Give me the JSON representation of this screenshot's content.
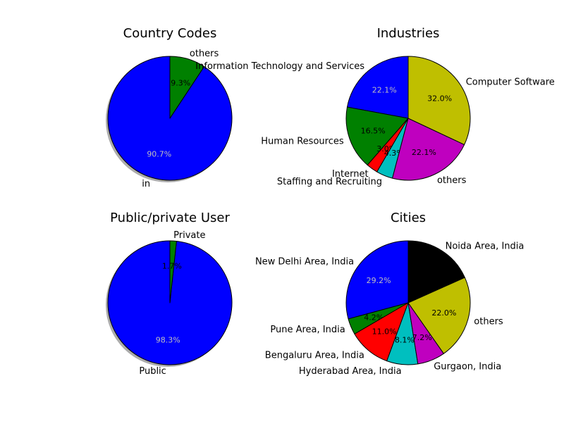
{
  "chart_data": [
    {
      "type": "pie",
      "title": "Country Codes",
      "shadow": true,
      "slices": [
        {
          "label": "in",
          "value": 90.7,
          "pct_text": "90.7%",
          "color": "#0000ff",
          "pct_color": "#bfbfbf"
        },
        {
          "label": "others",
          "value": 9.3,
          "pct_text": "9.3%",
          "color": "#008000",
          "pct_color": "#000000"
        }
      ]
    },
    {
      "type": "pie",
      "title": "Industries",
      "shadow": false,
      "slices": [
        {
          "label": "Information Technology and Services",
          "value": 22.1,
          "pct_text": "22.1%",
          "color": "#0000ff",
          "pct_color": "#bfbfbf"
        },
        {
          "label": "Human Resources",
          "value": 16.5,
          "pct_text": "16.5%",
          "color": "#008000",
          "pct_color": "#000000"
        },
        {
          "label": "Internet",
          "value": 3.0,
          "pct_text": "3.0%",
          "color": "#ff0000",
          "pct_color": "#000000"
        },
        {
          "label": "Staffing and Recruiting",
          "value": 4.3,
          "pct_text": "4.3%",
          "color": "#00bfbf",
          "pct_color": "#000000"
        },
        {
          "label": "others",
          "value": 22.1,
          "pct_text": "22.1%",
          "color": "#bf00bf",
          "pct_color": "#000000"
        },
        {
          "label": "Computer Software",
          "value": 32.0,
          "pct_text": "32.0%",
          "color": "#bfbf00",
          "pct_color": "#000000"
        }
      ]
    },
    {
      "type": "pie",
      "title": "Public/private User",
      "shadow": true,
      "slices": [
        {
          "label": "Public",
          "value": 98.3,
          "pct_text": "98.3%",
          "color": "#0000ff",
          "pct_color": "#bfbfbf"
        },
        {
          "label": "Private",
          "value": 1.7,
          "pct_text": "1.7%",
          "color": "#008000",
          "pct_color": "#000000"
        }
      ]
    },
    {
      "type": "pie",
      "title": "Cities",
      "shadow": false,
      "slices": [
        {
          "label": "New Delhi Area, India",
          "value": 29.2,
          "pct_text": "29.2%",
          "color": "#0000ff",
          "pct_color": "#bfbfbf"
        },
        {
          "label": "Pune Area, India",
          "value": 4.2,
          "pct_text": "4.2%",
          "color": "#008000",
          "pct_color": "#000000"
        },
        {
          "label": "Bengaluru Area, India",
          "value": 11.0,
          "pct_text": "11.0%",
          "color": "#ff0000",
          "pct_color": "#000000"
        },
        {
          "label": "Hyderabad Area, India",
          "value": 8.1,
          "pct_text": "8.1%",
          "color": "#00bfbf",
          "pct_color": "#000000"
        },
        {
          "label": "Gurgaon, India",
          "value": 7.2,
          "pct_text": "7.2%",
          "color": "#bf00bf",
          "pct_color": "#000000"
        },
        {
          "label": "others",
          "value": 22.0,
          "pct_text": "22.0%",
          "color": "#bfbf00",
          "pct_color": "#000000"
        },
        {
          "label": "Noida Area, India",
          "value": 18.3,
          "pct_text": "",
          "color": "#000000",
          "pct_color": "#000000"
        }
      ]
    }
  ]
}
